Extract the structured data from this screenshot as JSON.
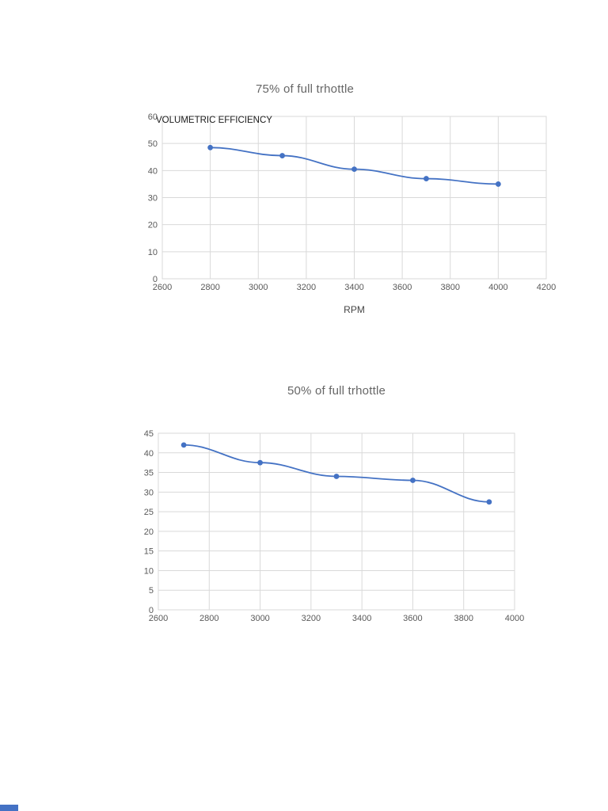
{
  "page": {
    "background": "#ffffff"
  },
  "chart_data": [
    {
      "type": "line",
      "title": "75% of full trhottle",
      "ylabel": "VOLUMETRIC EFFICIENCY",
      "xlabel": "RPM",
      "x": [
        2800,
        3100,
        3400,
        3700,
        4000
      ],
      "values": [
        48.5,
        45.5,
        40.5,
        37,
        35
      ],
      "xlim": [
        2600,
        4200
      ],
      "ylim": [
        0,
        60
      ],
      "x_tick_step": 200,
      "y_tick_step": 10,
      "x_tick_labels": [
        "2600",
        "2800",
        "3000",
        "3200",
        "3400",
        "3600",
        "3800",
        "4000",
        "4200"
      ],
      "y_tick_labels": [
        "0",
        "10",
        "20",
        "30",
        "40",
        "50",
        "60"
      ],
      "grid": true,
      "legend": "none",
      "grid_color": "#d9d9d9",
      "line_color": "#4472c4",
      "marker_color": "#4472c4"
    },
    {
      "type": "line",
      "title": "50% of full trhottle",
      "ylabel": "",
      "xlabel": "",
      "x": [
        2700,
        3000,
        3300,
        3600,
        3900
      ],
      "values": [
        42,
        37.5,
        34,
        33,
        27.5
      ],
      "xlim": [
        2600,
        4000
      ],
      "ylim": [
        0,
        45
      ],
      "x_tick_step": 200,
      "y_tick_step": 5,
      "x_tick_labels": [
        "2600",
        "2800",
        "3000",
        "3200",
        "3400",
        "3600",
        "3800",
        "4000"
      ],
      "y_tick_labels": [
        "0",
        "5",
        "10",
        "15",
        "20",
        "25",
        "30",
        "35",
        "40",
        "45"
      ],
      "grid": true,
      "legend": "none",
      "grid_color": "#d9d9d9",
      "line_color": "#4472c4",
      "marker_color": "#4472c4"
    }
  ],
  "decorations": {
    "corner_bar_color": "#4472c4"
  }
}
